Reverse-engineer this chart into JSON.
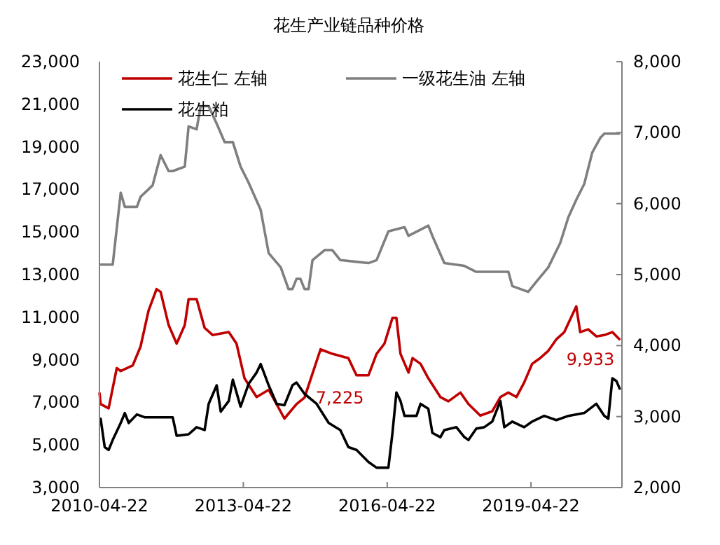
{
  "chart_data": {
    "type": "line",
    "title": "花生产业链品种价格",
    "legend": "top left",
    "line_style": "solid",
    "xlim": [
      "2010-04-22",
      "2021-03-15"
    ],
    "xticks": [
      "2010-04-22",
      "2013-04-22",
      "2016-04-22",
      "2019-04-22"
    ],
    "ylim": [
      3000,
      23000
    ],
    "yticks": [
      {
        "value": 3000,
        "label": "3,000"
      },
      {
        "value": 5000,
        "label": "5,000"
      },
      {
        "value": 7000,
        "label": "7,000"
      },
      {
        "value": 9000,
        "label": "9,000"
      },
      {
        "value": 11000,
        "label": "11,000"
      },
      {
        "value": 13000,
        "label": "13,000"
      },
      {
        "value": 15000,
        "label": "15,000"
      },
      {
        "value": 17000,
        "label": "17,000"
      },
      {
        "value": 19000,
        "label": "19,000"
      },
      {
        "value": 21000,
        "label": "21,000"
      },
      {
        "value": 23000,
        "label": "23,000"
      }
    ],
    "y2lim": [
      2000,
      8000
    ],
    "y2ticks": [
      {
        "value": 2000,
        "label": "2,000"
      },
      {
        "value": 3000,
        "label": "3,000"
      },
      {
        "value": 4000,
        "label": "4,000"
      },
      {
        "value": 5000,
        "label": "5,000"
      },
      {
        "value": 6000,
        "label": "6,000"
      },
      {
        "value": 7000,
        "label": "7,000"
      },
      {
        "value": 8000,
        "label": "8,000"
      }
    ],
    "annotations": [
      {
        "text": "7,225",
        "x": "2014-08",
        "y": 7225
      },
      {
        "text": "9,933",
        "x": "2021-03",
        "y": 9933
      }
    ],
    "series": [
      {
        "name": "花生仁 左轴",
        "color": "#c00000",
        "x": [
          "2010-04-22",
          "2010-05",
          "2010-07",
          "2010-09",
          "2010-10",
          "2011-01",
          "2011-03",
          "2011-05",
          "2011-07",
          "2011-08",
          "2011-10",
          "2011-12",
          "2012-02",
          "2012-03",
          "2012-05",
          "2012-07",
          "2012-09",
          "2013-01",
          "2013-03",
          "2013-05",
          "2013-08",
          "2013-11",
          "2014-03",
          "2014-06",
          "2014-08",
          "2014-09",
          "2014-12",
          "2015-03",
          "2015-07",
          "2015-09",
          "2015-12",
          "2016-02",
          "2016-04",
          "2016-06",
          "2016-07",
          "2016-08",
          "2016-10",
          "2016-11",
          "2017-01",
          "2017-03",
          "2017-06",
          "2017-08",
          "2017-11",
          "2018-01",
          "2018-04",
          "2018-07",
          "2018-09",
          "2018-11",
          "2019-01",
          "2019-03",
          "2019-05",
          "2019-07",
          "2019-09",
          "2019-11",
          "2020-01",
          "2020-04",
          "2020-05",
          "2020-07",
          "2020-09",
          "2020-11",
          "2021-01",
          "2021-03"
        ],
        "values": [
          7460,
          6920,
          6720,
          8610,
          8470,
          8740,
          9620,
          11310,
          12320,
          12190,
          10630,
          9760,
          10630,
          11850,
          11850,
          10500,
          10160,
          10300,
          9760,
          8130,
          7250,
          7590,
          6240,
          6920,
          7225,
          7800,
          9490,
          9280,
          9080,
          8270,
          8270,
          9280,
          9760,
          10970,
          10970,
          9280,
          8400,
          9080,
          8810,
          8130,
          7250,
          7050,
          7460,
          6920,
          6380,
          6580,
          7250,
          7460,
          7250,
          7930,
          8810,
          9080,
          9420,
          9960,
          10300,
          11510,
          10300,
          10430,
          10100,
          10160,
          10300,
          9933
        ]
      },
      {
        "name": "一级花生油 左轴",
        "color": "#7f7f7f",
        "x": [
          "2010-04-22",
          "2010-08",
          "2010-10",
          "2010-11",
          "2011-02",
          "2011-03",
          "2011-06",
          "2011-08",
          "2011-10",
          "2011-11",
          "2012-02",
          "2012-03",
          "2012-05",
          "2012-06",
          "2012-08",
          "2012-10",
          "2012-12",
          "2013-02",
          "2013-04",
          "2013-06",
          "2013-09",
          "2013-11",
          "2014-02",
          "2014-04",
          "2014-05",
          "2014-06",
          "2014-07",
          "2014-08",
          "2014-09",
          "2014-10",
          "2015-01",
          "2015-03",
          "2015-05",
          "2015-12",
          "2016-02",
          "2016-05",
          "2016-09",
          "2016-10",
          "2017-03",
          "2017-04",
          "2017-07",
          "2017-12",
          "2018-03",
          "2018-11",
          "2018-12",
          "2019-04",
          "2019-06",
          "2019-09",
          "2019-12",
          "2020-02",
          "2020-04",
          "2020-06",
          "2020-08",
          "2020-10",
          "2020-11",
          "2021-03"
        ],
        "values": [
          13470,
          13470,
          16850,
          16180,
          16180,
          16650,
          17190,
          18610,
          17860,
          17860,
          18070,
          19960,
          19820,
          20910,
          20910,
          20090,
          19220,
          19220,
          18070,
          17320,
          16040,
          14010,
          13340,
          12320,
          12320,
          12800,
          12800,
          12320,
          12320,
          13680,
          14150,
          14150,
          13680,
          13540,
          13680,
          15030,
          15230,
          14820,
          15300,
          14820,
          13540,
          13410,
          13130,
          13130,
          12460,
          12190,
          12660,
          13340,
          14490,
          15700,
          16510,
          17260,
          18740,
          19420,
          19620,
          19620
        ]
      },
      {
        "name": "花生粕",
        "color": "#000000",
        "axis": "y2",
        "x": [
          "2010-04-22",
          "2010-05",
          "2010-06",
          "2010-07",
          "2010-08",
          "2010-10",
          "2010-11",
          "2010-12",
          "2011-02",
          "2011-04",
          "2011-11",
          "2011-12",
          "2012-03",
          "2012-05",
          "2012-07",
          "2012-08",
          "2012-10",
          "2012-11",
          "2013-01",
          "2013-02",
          "2013-04",
          "2013-06",
          "2013-08",
          "2013-09",
          "2013-11",
          "2014-01",
          "2014-03",
          "2014-05",
          "2014-06",
          "2014-08",
          "2014-11",
          "2015-02",
          "2015-05",
          "2015-07",
          "2015-09",
          "2015-12",
          "2016-02",
          "2016-05",
          "2016-06",
          "2016-07",
          "2016-08",
          "2016-09",
          "2016-12",
          "2017-01",
          "2017-03",
          "2017-04",
          "2017-06",
          "2017-07",
          "2017-10",
          "2017-12",
          "2018-01",
          "2018-03",
          "2018-05",
          "2018-07",
          "2018-09",
          "2018-10",
          "2018-12",
          "2019-03",
          "2019-05",
          "2019-08",
          "2019-11",
          "2020-02",
          "2020-06",
          "2020-09",
          "2020-11",
          "2020-12",
          "2021-01",
          "2021-02",
          "2021-03"
        ],
        "values": [
          2970,
          2970,
          2570,
          2530,
          2670,
          2910,
          3050,
          2910,
          3030,
          2990,
          2990,
          2730,
          2750,
          2850,
          2810,
          3180,
          3440,
          3070,
          3220,
          3520,
          3140,
          3460,
          3620,
          3740,
          3440,
          3180,
          3160,
          3440,
          3480,
          3320,
          3180,
          2910,
          2810,
          2570,
          2530,
          2360,
          2280,
          2280,
          2770,
          3340,
          3220,
          3010,
          3010,
          3180,
          3110,
          2770,
          2710,
          2810,
          2850,
          2710,
          2670,
          2830,
          2850,
          2930,
          3220,
          2850,
          2930,
          2850,
          2930,
          3010,
          2950,
          3010,
          3050,
          3180,
          3010,
          2970,
          3540,
          3500,
          3380
        ]
      }
    ]
  }
}
